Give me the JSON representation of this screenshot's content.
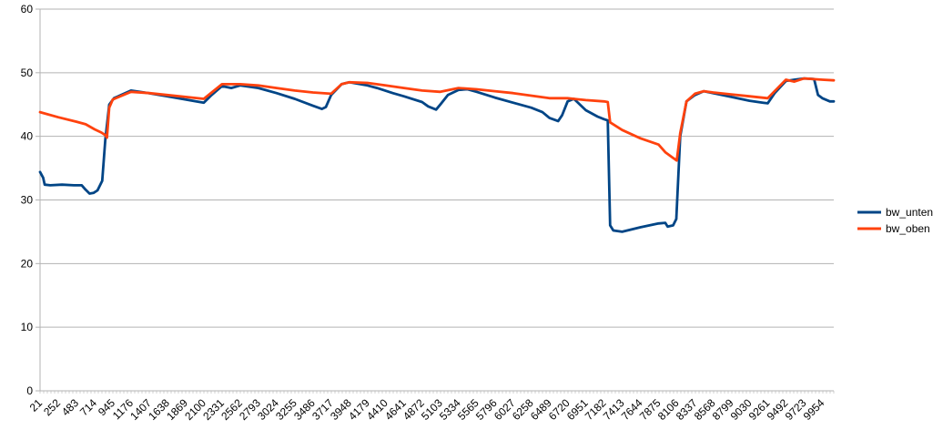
{
  "chart_data": {
    "type": "line",
    "title": "",
    "xlabel": "",
    "ylabel": "",
    "ylim": [
      0,
      60
    ],
    "xlim": [
      21,
      10100
    ],
    "yticks": [
      0,
      10,
      20,
      30,
      40,
      50,
      60
    ],
    "xtick_labels": [
      "21",
      "252",
      "483",
      "714",
      "945",
      "1176",
      "1407",
      "1638",
      "1869",
      "2100",
      "2331",
      "2562",
      "2793",
      "3024",
      "3255",
      "3486",
      "3717",
      "3948",
      "4179",
      "4410",
      "4641",
      "4872",
      "5103",
      "5334",
      "5565",
      "5796",
      "6027",
      "6258",
      "6489",
      "6720",
      "6951",
      "7182",
      "7413",
      "7644",
      "7875",
      "8106",
      "8337",
      "8568",
      "8799",
      "9030",
      "9261",
      "9492",
      "9723",
      "9954"
    ],
    "grid": "horizontal",
    "legend_position": "right",
    "series": [
      {
        "name": "bw_unten",
        "color": "#004586",
        "points": [
          [
            21,
            34.4
          ],
          [
            60,
            33.5
          ],
          [
            80,
            32.4
          ],
          [
            150,
            32.3
          ],
          [
            300,
            32.4
          ],
          [
            450,
            32.3
          ],
          [
            550,
            32.3
          ],
          [
            600,
            31.6
          ],
          [
            650,
            31.0
          ],
          [
            700,
            31.1
          ],
          [
            750,
            31.5
          ],
          [
            810,
            33.0
          ],
          [
            850,
            39.5
          ],
          [
            900,
            45.0
          ],
          [
            960,
            46.0
          ],
          [
            1050,
            46.5
          ],
          [
            1176,
            47.2
          ],
          [
            1400,
            46.8
          ],
          [
            1638,
            46.3
          ],
          [
            1869,
            45.8
          ],
          [
            2000,
            45.5
          ],
          [
            2100,
            45.3
          ],
          [
            2200,
            46.5
          ],
          [
            2331,
            47.9
          ],
          [
            2450,
            47.6
          ],
          [
            2562,
            48.0
          ],
          [
            2793,
            47.6
          ],
          [
            3024,
            46.8
          ],
          [
            3255,
            45.9
          ],
          [
            3486,
            44.8
          ],
          [
            3600,
            44.3
          ],
          [
            3650,
            44.6
          ],
          [
            3717,
            46.5
          ],
          [
            3850,
            48.2
          ],
          [
            3948,
            48.5
          ],
          [
            4179,
            48.0
          ],
          [
            4300,
            47.6
          ],
          [
            4500,
            46.8
          ],
          [
            4641,
            46.3
          ],
          [
            4872,
            45.4
          ],
          [
            4950,
            44.7
          ],
          [
            5050,
            44.2
          ],
          [
            5103,
            45.0
          ],
          [
            5200,
            46.5
          ],
          [
            5334,
            47.3
          ],
          [
            5450,
            47.4
          ],
          [
            5565,
            47.0
          ],
          [
            5796,
            46.1
          ],
          [
            6027,
            45.3
          ],
          [
            6258,
            44.5
          ],
          [
            6400,
            43.8
          ],
          [
            6489,
            42.9
          ],
          [
            6600,
            42.4
          ],
          [
            6650,
            43.3
          ],
          [
            6720,
            45.5
          ],
          [
            6800,
            45.9
          ],
          [
            6951,
            44.1
          ],
          [
            7100,
            43.1
          ],
          [
            7182,
            42.7
          ],
          [
            7230,
            42.5
          ],
          [
            7260,
            26.0
          ],
          [
            7300,
            25.2
          ],
          [
            7413,
            25.0
          ],
          [
            7644,
            25.7
          ],
          [
            7875,
            26.3
          ],
          [
            7960,
            26.4
          ],
          [
            7990,
            25.8
          ],
          [
            8060,
            26.0
          ],
          [
            8100,
            27.0
          ],
          [
            8150,
            40.0
          ],
          [
            8230,
            45.5
          ],
          [
            8337,
            46.5
          ],
          [
            8450,
            47.1
          ],
          [
            8568,
            46.8
          ],
          [
            8799,
            46.2
          ],
          [
            9030,
            45.6
          ],
          [
            9200,
            45.3
          ],
          [
            9261,
            45.2
          ],
          [
            9350,
            46.8
          ],
          [
            9492,
            48.7
          ],
          [
            9600,
            48.9
          ],
          [
            9723,
            49.1
          ],
          [
            9850,
            49.0
          ],
          [
            9900,
            46.5
          ],
          [
            9954,
            46.0
          ],
          [
            10050,
            45.5
          ],
          [
            10100,
            45.5
          ]
        ]
      },
      {
        "name": "bw_oben",
        "color": "#ff420e",
        "points": [
          [
            21,
            43.8
          ],
          [
            252,
            43.0
          ],
          [
            483,
            42.3
          ],
          [
            600,
            41.9
          ],
          [
            714,
            41.1
          ],
          [
            800,
            40.6
          ],
          [
            850,
            40.2
          ],
          [
            870,
            39.8
          ],
          [
            900,
            44.5
          ],
          [
            945,
            45.8
          ],
          [
            1176,
            47.0
          ],
          [
            1407,
            46.8
          ],
          [
            1638,
            46.5
          ],
          [
            1869,
            46.2
          ],
          [
            2100,
            45.9
          ],
          [
            2331,
            48.2
          ],
          [
            2562,
            48.2
          ],
          [
            2793,
            48.0
          ],
          [
            3024,
            47.6
          ],
          [
            3255,
            47.2
          ],
          [
            3486,
            46.9
          ],
          [
            3717,
            46.7
          ],
          [
            3850,
            48.2
          ],
          [
            3948,
            48.5
          ],
          [
            4179,
            48.4
          ],
          [
            4410,
            48.0
          ],
          [
            4641,
            47.6
          ],
          [
            4872,
            47.2
          ],
          [
            5103,
            47.0
          ],
          [
            5334,
            47.6
          ],
          [
            5565,
            47.4
          ],
          [
            5796,
            47.1
          ],
          [
            6027,
            46.8
          ],
          [
            6258,
            46.4
          ],
          [
            6489,
            46.0
          ],
          [
            6720,
            46.0
          ],
          [
            6951,
            45.7
          ],
          [
            7182,
            45.5
          ],
          [
            7230,
            45.4
          ],
          [
            7260,
            42.2
          ],
          [
            7413,
            41.0
          ],
          [
            7644,
            39.7
          ],
          [
            7875,
            38.7
          ],
          [
            7960,
            37.5
          ],
          [
            8050,
            36.7
          ],
          [
            8106,
            36.2
          ],
          [
            8150,
            40.5
          ],
          [
            8230,
            45.5
          ],
          [
            8337,
            46.7
          ],
          [
            8450,
            47.1
          ],
          [
            8568,
            46.9
          ],
          [
            8799,
            46.6
          ],
          [
            9030,
            46.3
          ],
          [
            9261,
            46.0
          ],
          [
            9492,
            48.9
          ],
          [
            9600,
            48.6
          ],
          [
            9723,
            49.1
          ],
          [
            9954,
            48.9
          ],
          [
            10100,
            48.8
          ]
        ]
      }
    ]
  }
}
